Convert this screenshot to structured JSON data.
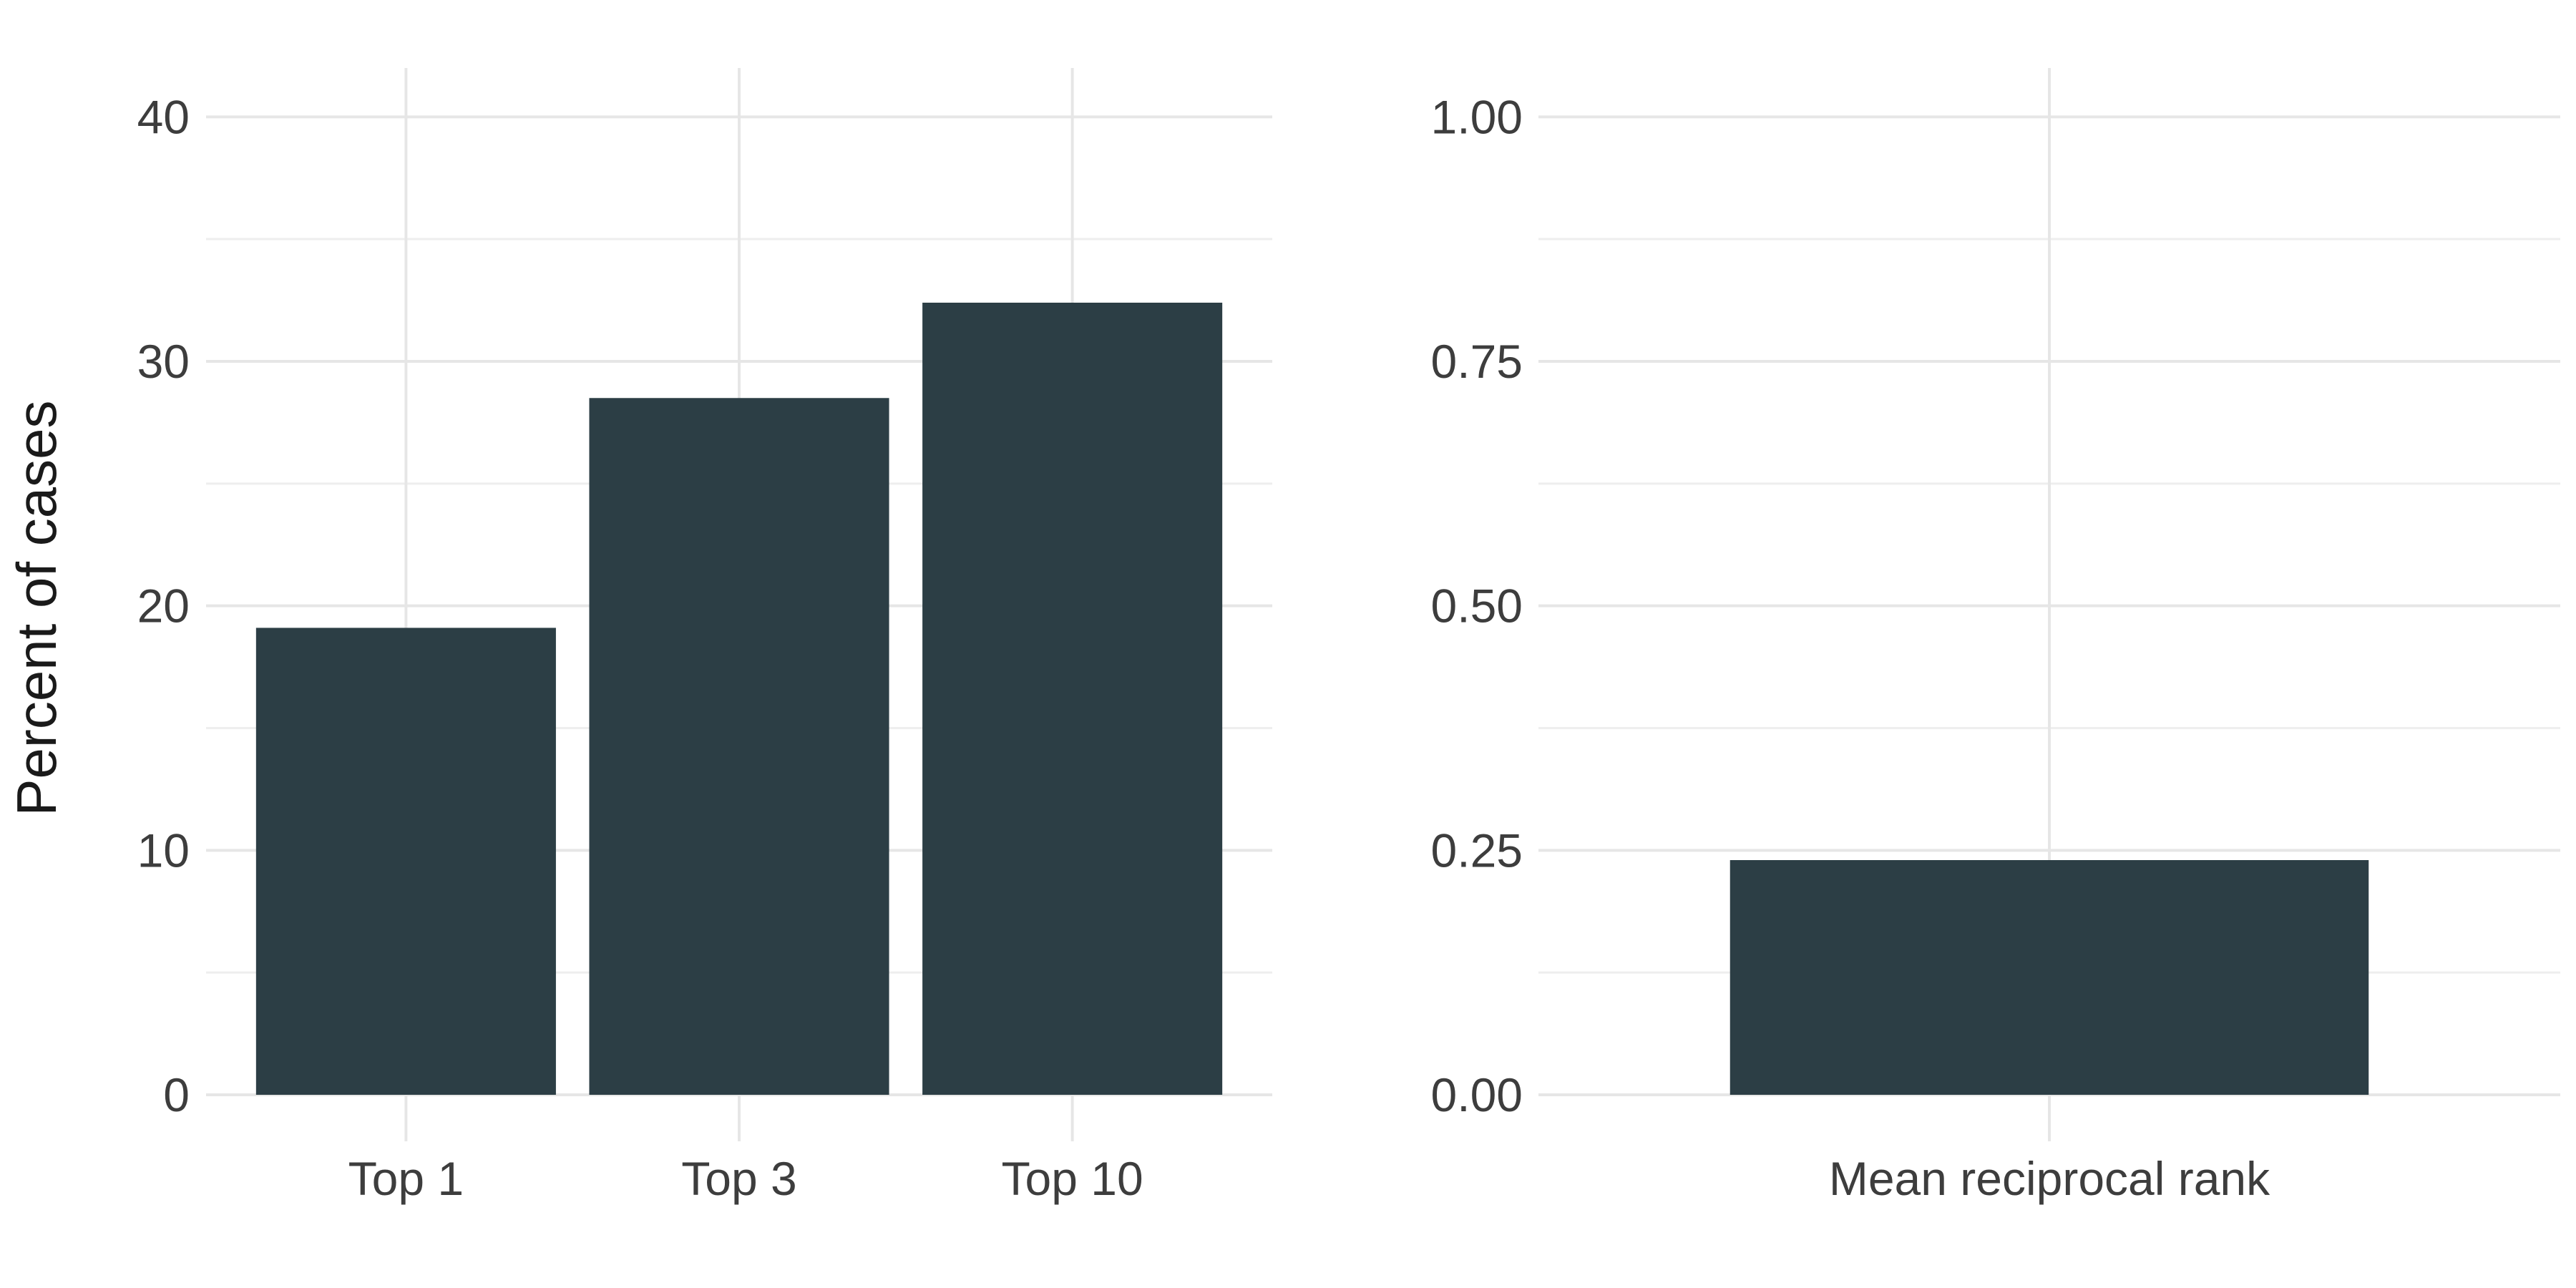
{
  "colors": {
    "bar": "#2c3e45",
    "grid_major": "#e6e6e6",
    "grid_minor": "#eeeeee",
    "text": "#3d3d3d"
  },
  "chart_data": [
    {
      "type": "bar",
      "title": "",
      "xlabel": "",
      "ylabel": "Percent of cases",
      "categories": [
        "Top 1",
        "Top 3",
        "Top 10"
      ],
      "values": [
        19.1,
        28.5,
        32.4
      ],
      "ylim": [
        0,
        42
      ],
      "yticks": [
        0,
        10,
        20,
        30,
        40
      ],
      "ytick_labels": [
        "0",
        "10",
        "20",
        "30",
        "40"
      ],
      "grid": true
    },
    {
      "type": "bar",
      "title": "",
      "xlabel": "",
      "ylabel": "",
      "categories": [
        "Mean reciprocal rank"
      ],
      "values": [
        0.24
      ],
      "ylim": [
        0,
        1.05
      ],
      "yticks": [
        0,
        0.25,
        0.5,
        0.75,
        1.0
      ],
      "ytick_labels": [
        "0.00",
        "0.25",
        "0.50",
        "0.75",
        "1.00"
      ],
      "grid": true
    }
  ]
}
